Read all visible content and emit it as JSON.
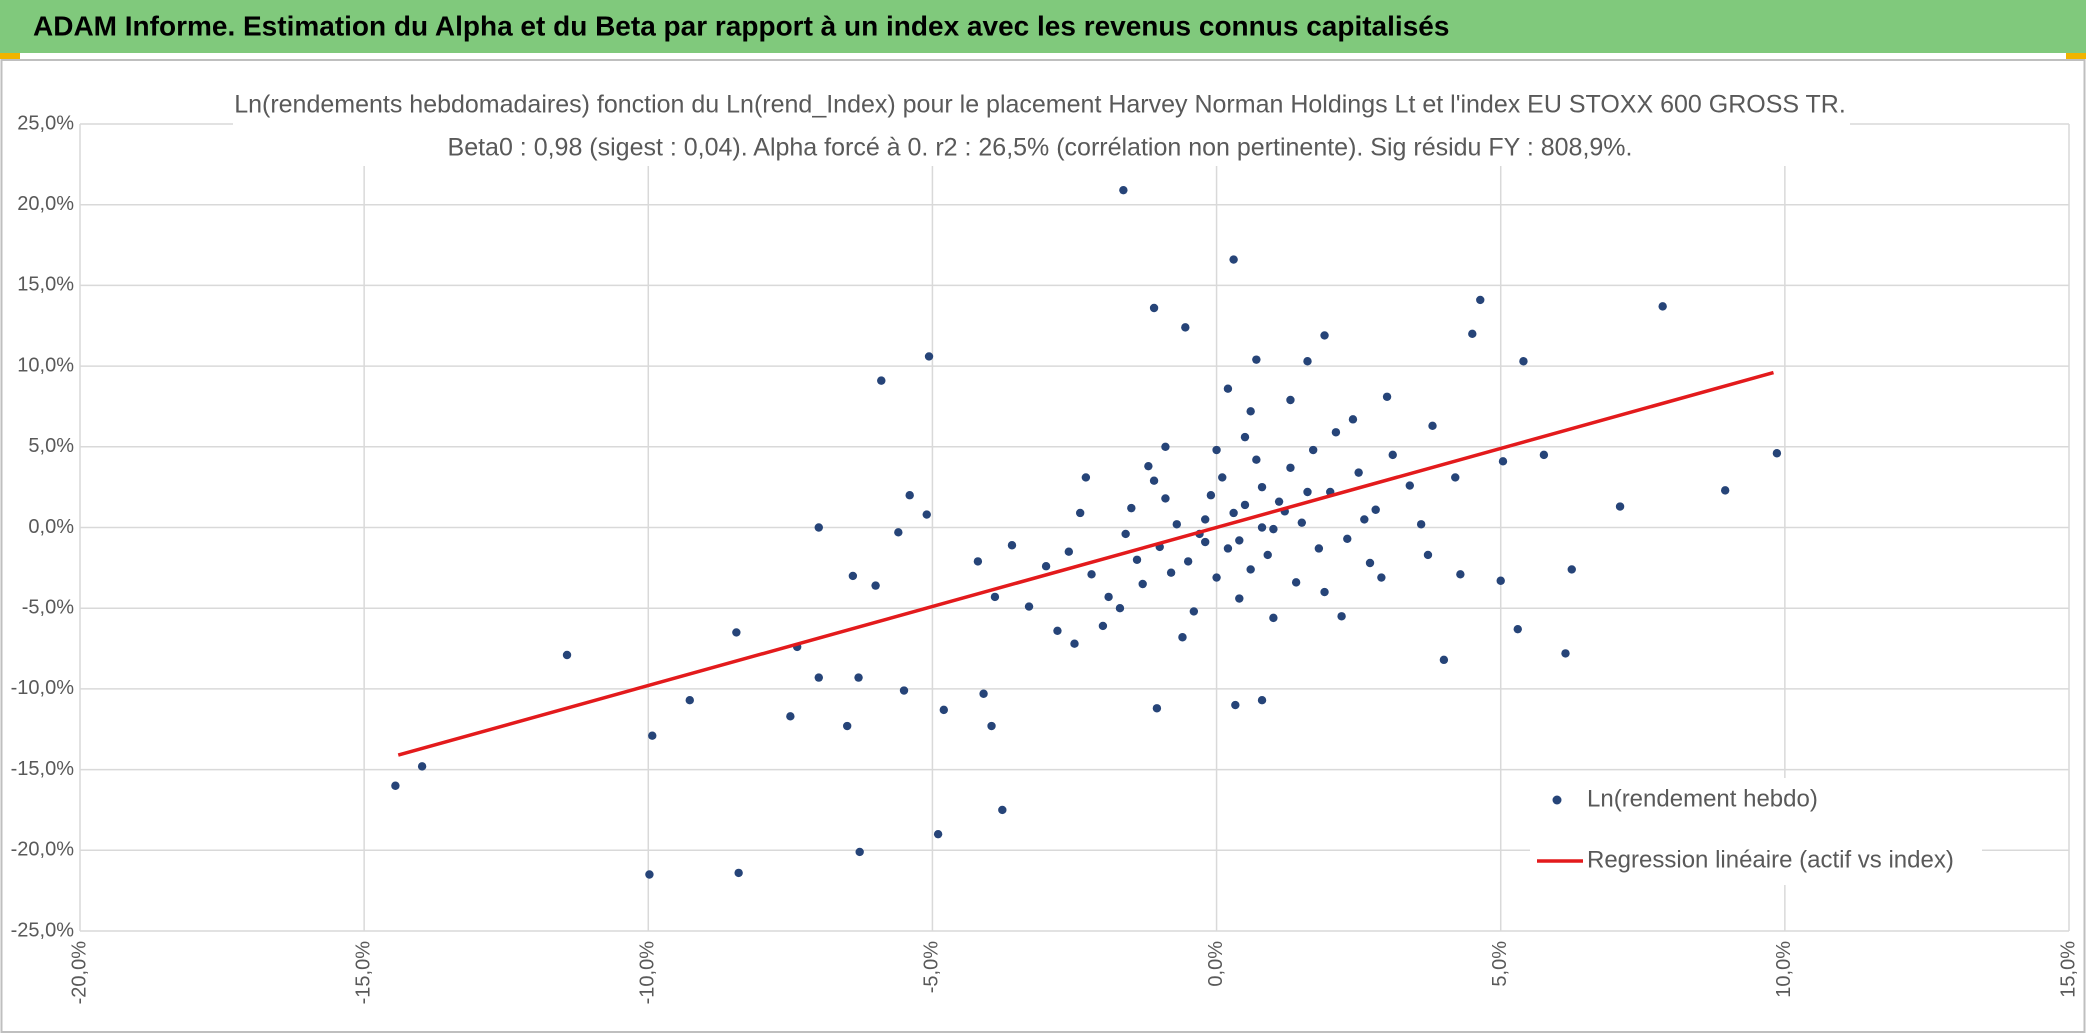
{
  "header": {
    "title": "ADAM Informe. Estimation du Alpha et du Beta par rapport à un index avec les revenus connus capitalisés"
  },
  "chart_data": {
    "type": "scatter",
    "title": "Ln(rendements hebdomadaires) fonction du Ln(rend_Index) pour le placement Harvey Norman Holdings Lt et l'index EU STOXX 600 GROSS TR.",
    "subtitle": "Beta0 : 0,98 (sigest : 0,04). Alpha forcé à 0. r2 : 26,5% (corrélation non pertinente). Sig résidu FY : 808,9%.",
    "xlim": [
      -20,
      15
    ],
    "ylim": [
      -25,
      25
    ],
    "xticks": [
      {
        "value": -20,
        "label": "-20,0%"
      },
      {
        "value": -15,
        "label": "-15,0%"
      },
      {
        "value": -10,
        "label": "-10,0%"
      },
      {
        "value": -5,
        "label": "-5,0%"
      },
      {
        "value": 0,
        "label": "0,0%"
      },
      {
        "value": 5,
        "label": "5,0%"
      },
      {
        "value": 10,
        "label": "10,0%"
      },
      {
        "value": 15,
        "label": "15,0%"
      }
    ],
    "yticks": [
      {
        "value": -25,
        "label": "-25,0%"
      },
      {
        "value": -20,
        "label": "-20,0%"
      },
      {
        "value": -15,
        "label": "-15,0%"
      },
      {
        "value": -10,
        "label": "-10,0%"
      },
      {
        "value": -5,
        "label": "-5,0%"
      },
      {
        "value": 0,
        "label": "0,0%"
      },
      {
        "value": 5,
        "label": "5,0%"
      },
      {
        "value": 10,
        "label": "10,0%"
      },
      {
        "value": 15,
        "label": "15,0%"
      },
      {
        "value": 20,
        "label": "20,0%"
      },
      {
        "value": 25,
        "label": "25,0%"
      }
    ],
    "grid": true,
    "series": [
      {
        "name": "Ln(rendement hebdo)",
        "color": "#264478",
        "type": "scatter",
        "x": [
          -1.64,
          0.3,
          -1.1,
          -0.55,
          -5.06,
          -5.9,
          7.85,
          4.64,
          9.86,
          8.95,
          7.1,
          6.25,
          6.14,
          5.3,
          4.0,
          5.0,
          5.04,
          5.76,
          5.4,
          -14.45,
          -13.98,
          -11.43,
          -9.93,
          -9.98,
          -8.41,
          -6.28,
          -4.9,
          -3.77,
          -9.27,
          -8.45,
          -7.5,
          -7.38,
          -7.0,
          -6.5,
          -6.4,
          -6.0,
          -5.6,
          -5.4,
          -5.1,
          -3.96,
          -4.1,
          -4.8,
          -1.05,
          0.33,
          0.8,
          3.72,
          4.29,
          -6.3,
          -5.5,
          -7.0,
          -0.2,
          0.4,
          1.1,
          -1.0,
          0.8,
          -0.5,
          1.5,
          2.0,
          -1.6,
          0.1,
          0.6,
          -0.9,
          1.8,
          -2.2,
          2.5,
          0.3,
          -0.3,
          1.0,
          -1.3,
          0.7,
          2.8,
          -2.6,
          1.3,
          -0.7,
          0.0,
          1.7,
          -1.9,
          2.3,
          -0.1,
          0.9,
          -1.1,
          3.1,
          -3.0,
          0.5,
          1.4,
          -2.4,
          2.1,
          -0.4,
          0.2,
          1.2,
          -1.5,
          2.7,
          -3.3,
          3.4,
          -0.8,
          0.6,
          1.9,
          -2.0,
          2.4,
          -1.2,
          0.2,
          1.6,
          -0.6,
          3.6,
          -3.6,
          1.0,
          -2.8,
          2.9,
          0.0,
          -1.7,
          3.8,
          -3.9,
          1.3,
          0.4,
          -0.9,
          2.2,
          -2.3,
          4.2,
          -4.2,
          0.8,
          -0.2,
          0.5,
          1.6,
          -1.4,
          2.6,
          3.0,
          -2.5,
          4.5,
          1.9,
          0.7
        ],
        "y": [
          20.9,
          16.6,
          13.6,
          12.4,
          10.6,
          9.1,
          13.7,
          14.1,
          4.6,
          2.3,
          1.3,
          -2.6,
          -7.8,
          -6.3,
          -8.2,
          -3.3,
          4.1,
          4.5,
          10.3,
          -16.0,
          -14.8,
          -7.9,
          -12.9,
          -21.5,
          -21.4,
          -20.1,
          -19.0,
          -17.5,
          -10.7,
          -6.5,
          -11.7,
          -7.4,
          0.0,
          -12.3,
          -3.0,
          -3.6,
          -0.3,
          2.0,
          0.8,
          -12.3,
          -10.3,
          -11.3,
          -11.2,
          -11.0,
          -10.7,
          -1.7,
          -2.9,
          -9.3,
          -10.1,
          -9.3,
          0.5,
          -0.8,
          1.6,
          -1.2,
          2.5,
          -2.1,
          0.3,
          2.2,
          -0.4,
          3.1,
          -2.6,
          1.8,
          -1.3,
          -2.9,
          3.4,
          0.9,
          -0.4,
          -0.1,
          -3.5,
          4.2,
          1.1,
          -1.5,
          3.7,
          0.2,
          -3.1,
          4.8,
          -4.3,
          -0.7,
          2.0,
          -1.7,
          2.9,
          4.5,
          -2.4,
          5.6,
          -3.4,
          0.9,
          5.9,
          -5.2,
          -1.3,
          1.0,
          1.2,
          -2.2,
          -4.9,
          2.6,
          -2.8,
          7.2,
          -4.0,
          -6.1,
          6.7,
          3.8,
          8.6,
          10.3,
          -6.8,
          0.2,
          -1.1,
          -5.6,
          -6.4,
          -3.1,
          4.8,
          -5.0,
          6.3,
          -4.3,
          7.9,
          -4.4,
          5.0,
          -5.5,
          3.1,
          3.1,
          -2.1,
          0.0,
          -0.9,
          1.4,
          2.2,
          -2.0,
          0.5,
          8.1,
          -7.2,
          12.0,
          11.9,
          10.4
        ]
      },
      {
        "name": "Regression linéaire (actif vs index)",
        "color": "#e31a1c",
        "type": "line",
        "x": [
          -14.4,
          9.8
        ],
        "y": [
          -14.1,
          9.6
        ]
      }
    ]
  }
}
